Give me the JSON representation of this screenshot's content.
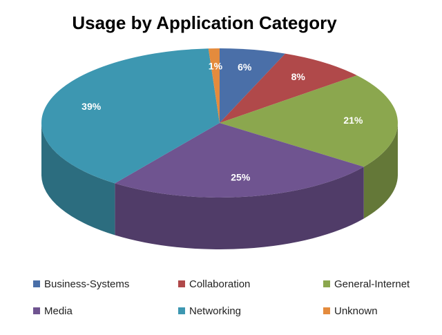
{
  "chart_data": {
    "type": "pie",
    "title": "Usage by Application Category",
    "categories": [
      "Business-Systems",
      "Collaboration",
      "General-Internet",
      "Media",
      "Networking",
      "Unknown"
    ],
    "values": [
      6,
      8,
      21,
      25,
      39,
      1
    ],
    "value_labels": [
      "6%",
      "8%",
      "21%",
      "25%",
      "39%",
      "1%"
    ],
    "colors": [
      "#4a6fa8",
      "#b0494a",
      "#8ba74e",
      "#6f5490",
      "#3d97b1",
      "#e48b3d"
    ],
    "legend": "bottom"
  }
}
